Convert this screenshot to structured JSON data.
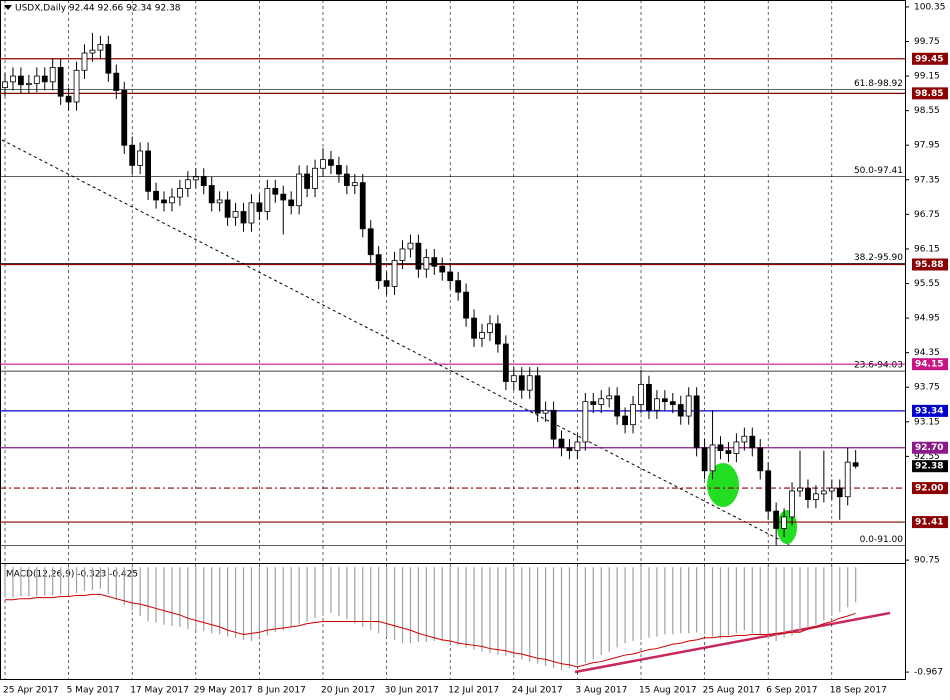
{
  "chart_data": {
    "type": "candlestick",
    "title": "USDX,Daily  92.44 92.66 92.34 92.38",
    "up_color": "#ffffff",
    "down_color": "#000000",
    "grid": true,
    "categories": [
      "25 Apr 2017",
      null,
      null,
      null,
      null,
      null,
      null,
      null,
      "5 May 2017",
      null,
      null,
      null,
      null,
      null,
      null,
      null,
      "17 May 2017",
      null,
      null,
      null,
      null,
      null,
      null,
      null,
      "29 May 2017",
      null,
      null,
      null,
      null,
      null,
      null,
      null,
      "8 Jun 2017",
      null,
      null,
      null,
      null,
      null,
      null,
      null,
      "20 Jun 2017",
      null,
      null,
      null,
      null,
      null,
      null,
      null,
      "30 Jun 2017",
      null,
      null,
      null,
      null,
      null,
      null,
      null,
      "12 Jul 2017",
      null,
      null,
      null,
      null,
      null,
      null,
      null,
      "24 Jul 2017",
      null,
      null,
      null,
      null,
      null,
      null,
      null,
      "3 Aug 2017",
      null,
      null,
      null,
      null,
      null,
      null,
      null,
      "15 Aug 2017",
      null,
      null,
      null,
      null,
      null,
      null,
      null,
      "25 Aug 2017",
      null,
      null,
      null,
      null,
      null,
      null,
      null,
      "6 Sep 2017",
      null,
      null,
      null,
      null,
      null,
      null,
      null,
      "18 Sep 2017",
      null,
      null,
      null
    ],
    "open": [
      98.95,
      99.05,
      99.15,
      99.0,
      99.02,
      99.15,
      99.05,
      99.3,
      98.8,
      98.7,
      99.25,
      99.55,
      99.6,
      99.7,
      99.2,
      98.9,
      97.95,
      97.6,
      97.85,
      97.15,
      97.0,
      96.95,
      97.05,
      97.2,
      97.35,
      97.4,
      97.25,
      96.95,
      97.0,
      96.7,
      96.8,
      96.6,
      96.95,
      96.8,
      97.2,
      97.1,
      97.0,
      96.9,
      97.45,
      97.2,
      97.55,
      97.7,
      97.6,
      97.45,
      97.25,
      97.3,
      96.5,
      96.05,
      95.6,
      95.5,
      95.95,
      96.15,
      96.25,
      95.8,
      96.0,
      95.85,
      95.75,
      95.6,
      95.4,
      94.95,
      94.6,
      94.7,
      94.85,
      94.5,
      93.85,
      93.95,
      93.7,
      93.95,
      93.3,
      93.35,
      92.85,
      92.7,
      92.65,
      92.8,
      93.5,
      93.45,
      93.55,
      93.6,
      93.25,
      93.1,
      93.45,
      93.8,
      93.35,
      93.55,
      93.5,
      93.45,
      93.25,
      93.6,
      92.7,
      92.3,
      92.75,
      92.65,
      92.6,
      92.8,
      92.9,
      92.7,
      92.3,
      91.6,
      91.3,
      91.5,
      91.95,
      92.0,
      91.8,
      91.9,
      91.95,
      92.0,
      91.85,
      92.44
    ],
    "high": [
      99.2,
      99.3,
      99.3,
      99.17,
      99.3,
      99.3,
      99.45,
      99.45,
      98.95,
      99.4,
      99.7,
      99.9,
      99.85,
      99.85,
      99.35,
      99.05,
      98.1,
      98.0,
      98.0,
      97.3,
      97.15,
      97.2,
      97.35,
      97.5,
      97.55,
      97.55,
      97.4,
      97.15,
      97.15,
      96.95,
      96.95,
      97.1,
      97.1,
      97.35,
      97.35,
      97.25,
      97.15,
      97.6,
      97.6,
      97.7,
      97.9,
      97.85,
      97.75,
      97.6,
      97.45,
      97.45,
      96.65,
      96.2,
      95.75,
      96.1,
      96.3,
      96.4,
      96.4,
      96.15,
      96.15,
      96.0,
      95.9,
      95.75,
      95.55,
      95.1,
      94.85,
      95.0,
      95.0,
      94.65,
      94.1,
      94.1,
      94.1,
      94.1,
      93.5,
      93.5,
      93.0,
      92.85,
      92.95,
      93.65,
      93.65,
      93.7,
      93.75,
      93.75,
      93.4,
      93.6,
      94.05,
      93.95,
      93.7,
      93.7,
      93.65,
      93.6,
      93.75,
      93.75,
      92.85,
      93.35,
      92.9,
      92.8,
      92.95,
      93.05,
      93.05,
      92.85,
      92.45,
      91.75,
      91.65,
      92.1,
      92.65,
      92.15,
      92.05,
      92.65,
      92.15,
      92.15,
      92.7,
      92.66
    ],
    "low": [
      98.8,
      98.9,
      98.85,
      98.85,
      98.87,
      98.9,
      98.9,
      98.65,
      98.55,
      98.55,
      99.1,
      99.4,
      99.45,
      99.05,
      98.75,
      97.8,
      97.45,
      97.45,
      97.0,
      96.85,
      96.8,
      96.8,
      96.9,
      97.05,
      97.2,
      97.1,
      96.8,
      96.8,
      96.55,
      96.55,
      96.45,
      96.45,
      96.65,
      96.65,
      96.95,
      96.4,
      96.75,
      96.75,
      97.05,
      97.05,
      97.4,
      97.45,
      97.3,
      97.1,
      97.1,
      96.35,
      95.9,
      95.45,
      95.35,
      95.35,
      95.8,
      96.0,
      95.65,
      95.65,
      95.7,
      95.6,
      95.45,
      95.25,
      94.8,
      94.45,
      94.45,
      94.55,
      94.35,
      93.7,
      93.7,
      93.55,
      93.55,
      93.15,
      93.15,
      92.7,
      92.55,
      92.5,
      92.5,
      92.65,
      93.3,
      93.3,
      93.4,
      93.1,
      92.95,
      92.95,
      93.3,
      93.2,
      93.2,
      93.35,
      93.3,
      93.1,
      93.1,
      92.55,
      92.15,
      92.15,
      92.5,
      92.45,
      92.45,
      92.65,
      92.55,
      92.15,
      91.45,
      91.01,
      91.15,
      91.35,
      91.85,
      91.65,
      91.65,
      91.75,
      91.8,
      91.45,
      91.7,
      92.34
    ],
    "close": [
      99.05,
      99.15,
      99.0,
      99.02,
      99.15,
      99.05,
      99.3,
      98.8,
      98.7,
      99.25,
      99.55,
      99.6,
      99.7,
      99.2,
      98.9,
      97.95,
      97.6,
      97.85,
      97.15,
      97.0,
      96.95,
      97.05,
      97.2,
      97.35,
      97.4,
      97.25,
      96.95,
      97.0,
      96.7,
      96.8,
      96.6,
      96.95,
      96.8,
      97.2,
      97.1,
      97.0,
      96.9,
      97.45,
      97.2,
      97.55,
      97.7,
      97.6,
      97.45,
      97.25,
      97.3,
      96.5,
      96.05,
      95.6,
      95.5,
      95.95,
      96.15,
      96.25,
      95.8,
      96.0,
      95.85,
      95.75,
      95.6,
      95.4,
      94.95,
      94.6,
      94.7,
      94.85,
      94.5,
      93.85,
      93.95,
      93.7,
      93.95,
      93.3,
      93.35,
      92.85,
      92.7,
      92.65,
      92.8,
      93.5,
      93.45,
      93.55,
      93.6,
      93.25,
      93.1,
      93.45,
      93.8,
      93.35,
      93.55,
      93.5,
      93.45,
      93.25,
      93.6,
      92.7,
      92.3,
      92.75,
      92.65,
      92.6,
      92.8,
      92.9,
      92.7,
      92.3,
      91.6,
      91.3,
      91.5,
      91.95,
      92.0,
      91.8,
      91.9,
      91.95,
      92.0,
      91.85,
      92.45,
      92.38
    ],
    "ylim": [
      90.7,
      100.47
    ],
    "yticks": [
      100.35,
      99.75,
      99.15,
      98.55,
      97.95,
      97.35,
      96.75,
      96.15,
      95.55,
      94.95,
      94.35,
      93.75,
      93.15,
      92.55,
      90.75
    ],
    "levels": [
      {
        "value": 99.45,
        "label": "99.45",
        "color": "#8b0000"
      },
      {
        "value": 98.85,
        "label": "98.85",
        "color": "#8b0000"
      },
      {
        "value": 95.88,
        "label": "95.88",
        "color": "#8b0000"
      },
      {
        "value": 94.15,
        "label": "94.15",
        "color": "#c71585"
      },
      {
        "value": 93.34,
        "label": "93.34",
        "color": "#0000cd"
      },
      {
        "value": 92.7,
        "label": "92.70",
        "color": "#8b1a8b"
      },
      {
        "value": 92.0,
        "label": "92.00",
        "color": "#8b0000",
        "dashed": true
      },
      {
        "value": 91.41,
        "label": "91.41",
        "color": "#8b0000"
      }
    ],
    "last_price": {
      "value": 92.38,
      "label": "92.38",
      "color": "#000000"
    },
    "fibonacci": [
      {
        "value": 98.92,
        "label": "61.8-98.92"
      },
      {
        "value": 97.41,
        "label": "50.0-97.41"
      },
      {
        "value": 95.9,
        "label": "38.2-95.90"
      },
      {
        "value": 94.03,
        "label": "23.6-94.03"
      },
      {
        "value": 91.0,
        "label": "0.0-91.00"
      }
    ],
    "macd": {
      "label": "MACD(12,26,9) -0.323 -0.425",
      "ylim": [
        -1.04,
        0.03
      ],
      "yticks": [
        -0.967
      ],
      "values": [
        -0.28,
        -0.28,
        -0.27,
        -0.27,
        -0.27,
        -0.26,
        -0.26,
        -0.25,
        -0.25,
        -0.24,
        -0.22,
        -0.21,
        -0.2,
        -0.25,
        -0.3,
        -0.35,
        -0.4,
        -0.45,
        -0.5,
        -0.51,
        -0.53,
        -0.54,
        -0.55,
        -0.57,
        -0.58,
        -0.59,
        -0.61,
        -0.62,
        -0.64,
        -0.65,
        -0.67,
        -0.68,
        -0.65,
        -0.63,
        -0.6,
        -0.58,
        -0.55,
        -0.52,
        -0.5,
        -0.47,
        -0.45,
        -0.42,
        -0.45,
        -0.48,
        -0.52,
        -0.55,
        -0.58,
        -0.61,
        -0.64,
        -0.67,
        -0.7,
        -0.7,
        -0.69,
        -0.69,
        -0.68,
        -0.68,
        -0.7,
        -0.72,
        -0.74,
        -0.76,
        -0.78,
        -0.79,
        -0.81,
        -0.82,
        -0.84,
        -0.85,
        -0.87,
        -0.89,
        -0.91,
        -0.93,
        -0.95,
        -0.93,
        -0.9,
        -0.88,
        -0.85,
        -0.81,
        -0.78,
        -0.74,
        -0.7,
        -0.68,
        -0.67,
        -0.65,
        -0.64,
        -0.62,
        -0.62,
        -0.61,
        -0.61,
        -0.6,
        -0.62,
        -0.64,
        -0.66,
        -0.63,
        -0.61,
        -0.58,
        -0.61,
        -0.63,
        -0.66,
        -0.68,
        -0.65,
        -0.63,
        -0.6,
        -0.56,
        -0.53,
        -0.49,
        -0.45,
        -0.41,
        -0.37,
        -0.323
      ],
      "signal": [
        -0.3,
        -0.3,
        -0.29,
        -0.29,
        -0.28,
        -0.28,
        -0.28,
        -0.27,
        -0.27,
        -0.26,
        -0.26,
        -0.25,
        -0.25,
        -0.27,
        -0.29,
        -0.31,
        -0.33,
        -0.34,
        -0.36,
        -0.38,
        -0.4,
        -0.42,
        -0.44,
        -0.47,
        -0.49,
        -0.51,
        -0.53,
        -0.55,
        -0.58,
        -0.6,
        -0.62,
        -0.61,
        -0.6,
        -0.58,
        -0.57,
        -0.56,
        -0.55,
        -0.54,
        -0.52,
        -0.51,
        -0.5,
        -0.5,
        -0.5,
        -0.5,
        -0.5,
        -0.5,
        -0.5,
        -0.5,
        -0.52,
        -0.54,
        -0.56,
        -0.58,
        -0.61,
        -0.63,
        -0.65,
        -0.67,
        -0.68,
        -0.7,
        -0.71,
        -0.72,
        -0.73,
        -0.75,
        -0.76,
        -0.77,
        -0.79,
        -0.8,
        -0.82,
        -0.84,
        -0.85,
        -0.87,
        -0.89,
        -0.9,
        -0.92,
        -0.9,
        -0.88,
        -0.87,
        -0.85,
        -0.83,
        -0.81,
        -0.8,
        -0.78,
        -0.76,
        -0.75,
        -0.73,
        -0.71,
        -0.7,
        -0.68,
        -0.67,
        -0.65,
        -0.65,
        -0.64,
        -0.64,
        -0.63,
        -0.63,
        -0.62,
        -0.62,
        -0.62,
        -0.61,
        -0.61,
        -0.6,
        -0.6,
        -0.57,
        -0.55,
        -0.52,
        -0.5,
        -0.47,
        -0.45,
        -0.425
      ],
      "histogram_color": "#a0a0a0",
      "signal_color": "#cc0000"
    }
  }
}
